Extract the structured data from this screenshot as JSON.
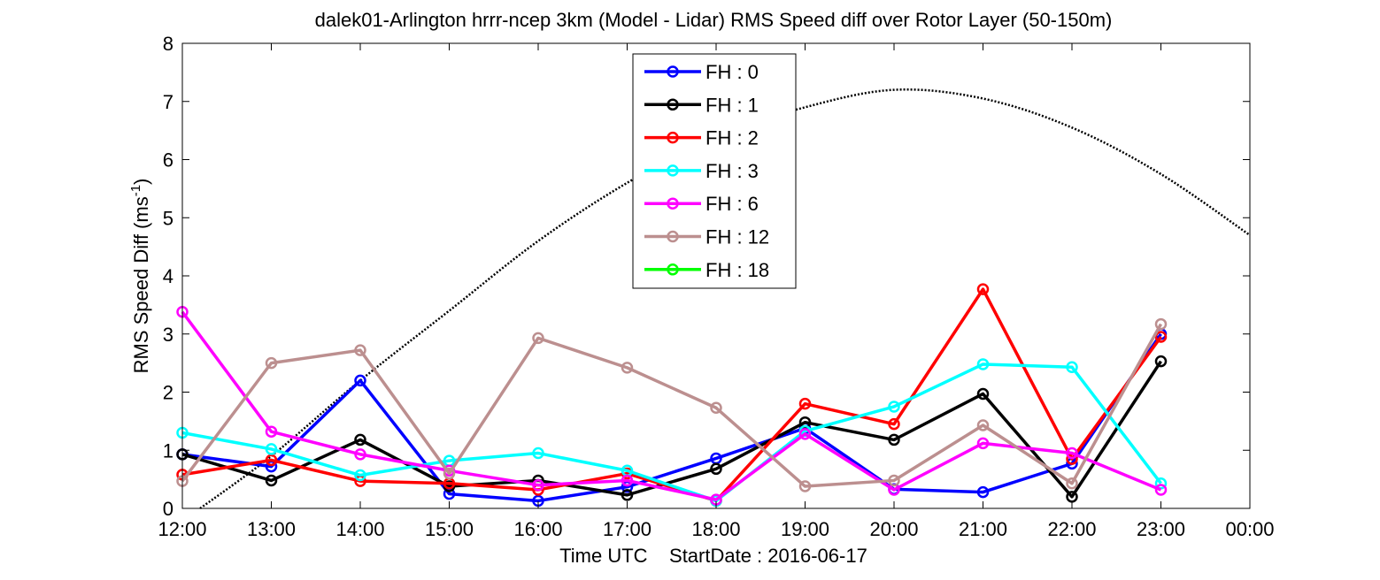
{
  "chart_data": {
    "type": "line",
    "title": "dalek01-Arlington hrrr-ncep 3km (Model - Lidar) RMS Speed diff over Rotor Layer (50-150m)",
    "ylabel_main": "RMS Speed Diff (ms",
    "ylabel_sup": "-1",
    "ylabel_end": ")",
    "xlabel": "Time UTC    StartDate : 2016-06-17",
    "ylim": [
      0,
      8
    ],
    "xlim": [
      0,
      12
    ],
    "yticks": [
      "0",
      "1",
      "2",
      "3",
      "4",
      "5",
      "6",
      "7",
      "8"
    ],
    "xticks": [
      "12:00",
      "13:00",
      "14:00",
      "15:00",
      "16:00",
      "17:00",
      "18:00",
      "19:00",
      "20:00",
      "21:00",
      "22:00",
      "23:00",
      "00:00"
    ],
    "legend_position": "top-center",
    "series": [
      {
        "name": "FH : 0",
        "color": "#0000ff",
        "values": [
          0.93,
          0.72,
          2.2,
          0.25,
          0.13,
          0.37,
          0.86,
          1.38,
          0.33,
          0.28,
          0.77,
          3.0
        ]
      },
      {
        "name": "FH : 1",
        "color": "#000000",
        "values": [
          0.93,
          0.48,
          1.18,
          0.38,
          0.48,
          0.23,
          0.68,
          1.48,
          1.18,
          1.97,
          0.2,
          2.53
        ]
      },
      {
        "name": "FH : 2",
        "color": "#ff0000",
        "values": [
          0.58,
          0.83,
          0.47,
          0.43,
          0.32,
          0.6,
          0.13,
          1.8,
          1.45,
          3.77,
          0.85,
          2.95
        ]
      },
      {
        "name": "FH : 3",
        "color": "#00ffff",
        "values": [
          1.3,
          1.02,
          0.57,
          0.82,
          0.95,
          0.65,
          0.13,
          1.33,
          1.75,
          2.48,
          2.43,
          0.43
        ]
      },
      {
        "name": "FH : 6",
        "color": "#ff00ff",
        "values": [
          3.38,
          1.32,
          0.93,
          0.65,
          0.4,
          0.48,
          0.15,
          1.28,
          0.32,
          1.12,
          0.95,
          0.32
        ]
      },
      {
        "name": "FH : 12",
        "color": "#bc8f8f",
        "values": [
          0.47,
          2.5,
          2.72,
          0.6,
          2.93,
          2.42,
          1.73,
          0.38,
          0.48,
          1.43,
          0.43,
          3.17
        ]
      },
      {
        "name": "FH : 18",
        "color": "#00ff00",
        "values": []
      }
    ],
    "reference_curve": {
      "style": "dotted",
      "color": "#000000",
      "x": [
        0.2,
        1,
        2,
        3,
        4,
        5,
        6,
        7,
        8,
        9,
        10,
        11,
        12
      ],
      "y": [
        0,
        0.9,
        2.2,
        3.4,
        4.6,
        5.6,
        6.4,
        6.9,
        7.2,
        7.05,
        6.55,
        5.75,
        4.7
      ]
    }
  }
}
